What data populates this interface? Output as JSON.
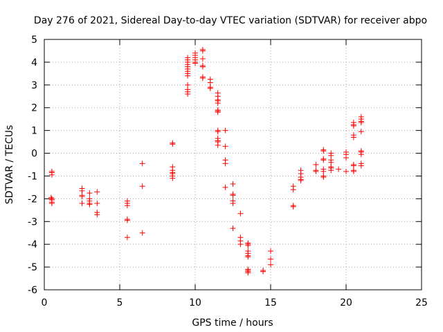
{
  "chart_data": {
    "type": "scatter",
    "title": "Day 276 of 2021, Sidereal Day-to-day VTEC variation (SDTVAR) for receiver abpo",
    "xlabel": "GPS time / hours",
    "ylabel": "SDTVAR / TECUs",
    "xlim": [
      0,
      25
    ],
    "ylim": [
      -6,
      5
    ],
    "x_ticks": [
      0,
      5,
      10,
      15,
      20,
      25
    ],
    "y_ticks": [
      -6,
      -5,
      -4,
      -3,
      -2,
      -1,
      0,
      1,
      2,
      3,
      4,
      5
    ],
    "grid": true,
    "marker": "+",
    "colors": {
      "series": "#ff0000",
      "axis": "#000000",
      "grid": "#a0a0a0"
    },
    "series": [
      {
        "name": "SDTVAR",
        "points": [
          [
            0.5,
            -0.8
          ],
          [
            0.5,
            -0.85
          ],
          [
            0.5,
            -0.95
          ],
          [
            0.45,
            -1.95
          ],
          [
            0.5,
            -2.0
          ],
          [
            0.5,
            -2.05
          ],
          [
            0.5,
            -2.15
          ],
          [
            0.5,
            -2.2
          ],
          [
            2.5,
            -1.55
          ],
          [
            2.5,
            -1.65
          ],
          [
            2.5,
            -1.85
          ],
          [
            2.5,
            -1.9
          ],
          [
            2.5,
            -2.2
          ],
          [
            3.0,
            -1.75
          ],
          [
            3.0,
            -2.0
          ],
          [
            3.0,
            -2.1
          ],
          [
            3.0,
            -2.2
          ],
          [
            3.0,
            -2.25
          ],
          [
            3.5,
            -1.7
          ],
          [
            3.5,
            -2.2
          ],
          [
            3.5,
            -2.6
          ],
          [
            3.5,
            -2.7
          ],
          [
            5.5,
            -2.1
          ],
          [
            5.5,
            -2.2
          ],
          [
            5.5,
            -2.3
          ],
          [
            5.5,
            -2.9
          ],
          [
            5.5,
            -2.95
          ],
          [
            5.5,
            -3.7
          ],
          [
            6.5,
            -0.45
          ],
          [
            6.5,
            -1.45
          ],
          [
            6.5,
            -3.5
          ],
          [
            8.5,
            0.4
          ],
          [
            8.5,
            0.45
          ],
          [
            8.5,
            -0.6
          ],
          [
            8.5,
            -0.75
          ],
          [
            8.5,
            -0.85
          ],
          [
            8.5,
            -0.9
          ],
          [
            8.5,
            -1.0
          ],
          [
            8.5,
            -1.1
          ],
          [
            9.5,
            4.2
          ],
          [
            9.5,
            4.1
          ],
          [
            9.5,
            4.0
          ],
          [
            9.5,
            3.9
          ],
          [
            9.5,
            3.8
          ],
          [
            9.5,
            3.7
          ],
          [
            9.5,
            3.6
          ],
          [
            9.5,
            3.5
          ],
          [
            9.5,
            3.4
          ],
          [
            9.5,
            3.0
          ],
          [
            9.5,
            2.8
          ],
          [
            9.5,
            2.7
          ],
          [
            9.5,
            2.6
          ],
          [
            10.0,
            4.4
          ],
          [
            10.0,
            4.3
          ],
          [
            10.0,
            4.2
          ],
          [
            10.0,
            4.1
          ],
          [
            10.0,
            4.0
          ],
          [
            10.0,
            3.95
          ],
          [
            10.5,
            4.55
          ],
          [
            10.5,
            4.5
          ],
          [
            10.5,
            4.15
          ],
          [
            10.5,
            3.85
          ],
          [
            10.5,
            3.8
          ],
          [
            10.5,
            3.35
          ],
          [
            10.5,
            3.3
          ],
          [
            11.0,
            3.25
          ],
          [
            11.0,
            3.1
          ],
          [
            11.0,
            2.9
          ],
          [
            11.0,
            2.85
          ],
          [
            11.5,
            2.65
          ],
          [
            11.5,
            2.5
          ],
          [
            11.5,
            2.35
          ],
          [
            11.5,
            2.3
          ],
          [
            11.5,
            2.2
          ],
          [
            11.5,
            1.9
          ],
          [
            11.5,
            1.85
          ],
          [
            11.5,
            1.8
          ],
          [
            11.5,
            1.0
          ],
          [
            11.5,
            0.95
          ],
          [
            11.5,
            0.65
          ],
          [
            11.5,
            0.55
          ],
          [
            11.5,
            0.5
          ],
          [
            11.5,
            0.35
          ],
          [
            12.0,
            1.0
          ],
          [
            12.0,
            0.3
          ],
          [
            12.0,
            -0.3
          ],
          [
            12.0,
            -0.45
          ],
          [
            12.0,
            -1.5
          ],
          [
            12.5,
            -1.35
          ],
          [
            12.5,
            -1.8
          ],
          [
            12.5,
            -1.85
          ],
          [
            12.5,
            -2.1
          ],
          [
            12.5,
            -2.2
          ],
          [
            12.5,
            -3.3
          ],
          [
            13.0,
            -2.65
          ],
          [
            13.0,
            -3.7
          ],
          [
            13.0,
            -3.85
          ],
          [
            13.0,
            -4.0
          ],
          [
            13.5,
            -3.95
          ],
          [
            13.5,
            -4.0
          ],
          [
            13.5,
            -4.05
          ],
          [
            13.5,
            -4.3
          ],
          [
            13.5,
            -4.4
          ],
          [
            13.5,
            -4.5
          ],
          [
            13.5,
            -4.55
          ],
          [
            13.5,
            -5.1
          ],
          [
            13.5,
            -5.15
          ],
          [
            13.5,
            -5.2
          ],
          [
            13.5,
            -5.25
          ],
          [
            14.5,
            -5.15
          ],
          [
            14.5,
            -5.2
          ],
          [
            15.0,
            -4.3
          ],
          [
            15.0,
            -4.65
          ],
          [
            15.0,
            -4.9
          ],
          [
            16.5,
            -1.45
          ],
          [
            16.5,
            -1.6
          ],
          [
            16.5,
            -2.3
          ],
          [
            16.5,
            -2.35
          ],
          [
            17.0,
            -0.75
          ],
          [
            17.0,
            -0.9
          ],
          [
            17.0,
            -1.05
          ],
          [
            17.0,
            -1.15
          ],
          [
            17.0,
            -1.2
          ],
          [
            18.0,
            -0.5
          ],
          [
            18.0,
            -0.75
          ],
          [
            18.0,
            -0.8
          ],
          [
            18.5,
            0.15
          ],
          [
            18.5,
            0.1
          ],
          [
            18.5,
            -0.25
          ],
          [
            18.5,
            -0.3
          ],
          [
            18.5,
            -0.7
          ],
          [
            18.5,
            -0.8
          ],
          [
            18.5,
            -1.0
          ],
          [
            18.5,
            -1.05
          ],
          [
            19.0,
            0.0
          ],
          [
            19.0,
            -0.1
          ],
          [
            19.0,
            -0.3
          ],
          [
            19.0,
            -0.4
          ],
          [
            19.0,
            -0.6
          ],
          [
            19.0,
            -0.65
          ],
          [
            19.0,
            -0.75
          ],
          [
            19.5,
            -0.7
          ],
          [
            20.0,
            0.05
          ],
          [
            20.0,
            -0.05
          ],
          [
            20.0,
            -0.2
          ],
          [
            20.0,
            -0.8
          ],
          [
            20.5,
            1.35
          ],
          [
            20.5,
            1.25
          ],
          [
            20.5,
            1.2
          ],
          [
            20.5,
            0.8
          ],
          [
            20.5,
            0.7
          ],
          [
            20.5,
            -0.5
          ],
          [
            20.5,
            -0.55
          ],
          [
            20.5,
            -0.75
          ],
          [
            20.5,
            -0.8
          ],
          [
            21.0,
            1.6
          ],
          [
            21.0,
            1.5
          ],
          [
            21.0,
            1.4
          ],
          [
            21.0,
            1.35
          ],
          [
            21.0,
            0.95
          ],
          [
            21.0,
            0.1
          ],
          [
            21.0,
            0.05
          ],
          [
            21.0,
            -0.05
          ],
          [
            21.0,
            -0.45
          ],
          [
            21.0,
            -0.55
          ]
        ]
      }
    ]
  }
}
